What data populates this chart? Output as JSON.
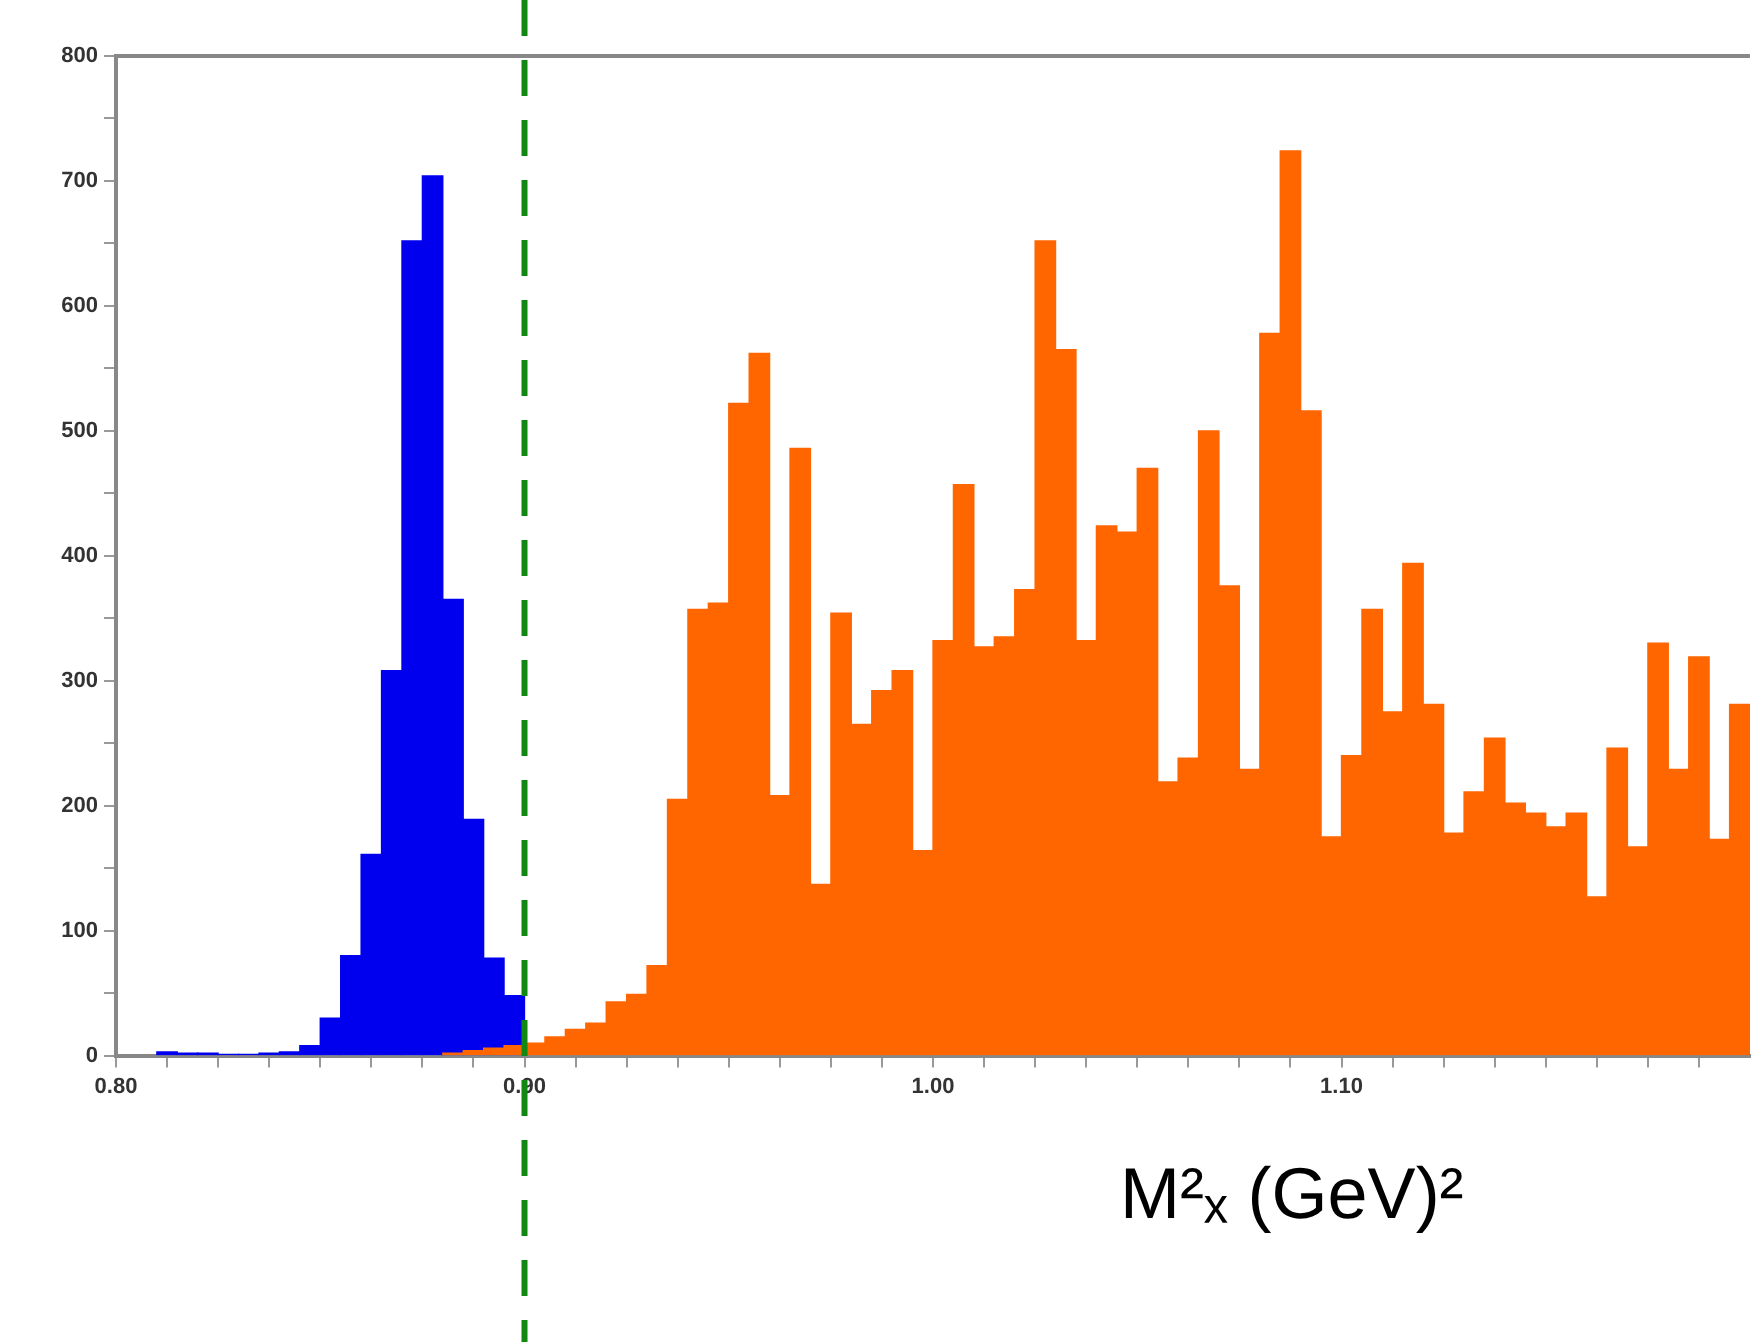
{
  "chart_data": {
    "type": "histogram",
    "xlabel": "M²ₓ (GeV)²",
    "bins": [
      0.81,
      0.815,
      0.82,
      0.825,
      0.83,
      0.835,
      0.84,
      0.845,
      0.85,
      0.855,
      0.86,
      0.865,
      0.87,
      0.875,
      0.88,
      0.885,
      0.89,
      0.895,
      0.9,
      0.905,
      0.91,
      0.915,
      0.92,
      0.925,
      0.93,
      0.935,
      0.94,
      0.945,
      0.95,
      0.955,
      0.96,
      0.965,
      0.97,
      0.975,
      0.98,
      0.985,
      0.99,
      0.995,
      1.0,
      1.005,
      1.01,
      1.015,
      1.02,
      1.025,
      1.03,
      1.035,
      1.04,
      1.045,
      1.05,
      1.055,
      1.06,
      1.065,
      1.07,
      1.075,
      1.08,
      1.085,
      1.09,
      1.095,
      1.1,
      1.105,
      1.11,
      1.115,
      1.12,
      1.125,
      1.13,
      1.135,
      1.14,
      1.145,
      1.15,
      1.155,
      1.16,
      1.165,
      1.17,
      1.175,
      1.18,
      1.185,
      1.19,
      1.195,
      1.2
    ],
    "series": [
      {
        "color": "#0000ee",
        "values": [
          3,
          2,
          2,
          1,
          1,
          2,
          3,
          8,
          30,
          80,
          161,
          308,
          652,
          704,
          365,
          189,
          78,
          48,
          null,
          null,
          null,
          null,
          null,
          null,
          null,
          null,
          null,
          null,
          null,
          null,
          null,
          null,
          null,
          null,
          null,
          null,
          null,
          null,
          null,
          null,
          null,
          null,
          null,
          null,
          null,
          null,
          null,
          null,
          null,
          null,
          null,
          null,
          null,
          null,
          null,
          null,
          null,
          null,
          null,
          null,
          null,
          null,
          null,
          null,
          null,
          null,
          null,
          null,
          null,
          null,
          null,
          null,
          null,
          null,
          null,
          null,
          null,
          null
        ]
      },
      {
        "color": "#ff6600",
        "values": [
          null,
          null,
          null,
          null,
          null,
          null,
          null,
          null,
          null,
          null,
          null,
          null,
          null,
          null,
          2,
          4,
          6,
          8,
          10,
          15,
          21,
          26,
          43,
          49,
          72,
          205,
          357,
          362,
          522,
          562,
          208,
          486,
          137,
          354,
          265,
          292,
          308,
          164,
          332,
          457,
          327,
          335,
          373,
          652,
          565,
          332,
          424,
          419,
          470,
          219,
          238,
          500,
          376,
          229,
          578,
          724,
          516,
          175,
          240,
          357,
          275,
          394,
          281,
          178,
          211,
          254,
          202,
          194,
          183,
          194,
          127,
          246,
          167,
          330,
          229,
          319,
          173,
          281
        ]
      }
    ],
    "xlim": [
      0.8,
      1.2
    ],
    "xticks": [
      {
        "value": 0.8,
        "label": "0.80"
      },
      {
        "value": 0.8125,
        "label": null
      },
      {
        "value": 0.825,
        "label": null
      },
      {
        "value": 0.8375,
        "label": null
      },
      {
        "value": 0.85,
        "label": null
      },
      {
        "value": 0.8625,
        "label": null
      },
      {
        "value": 0.875,
        "label": null
      },
      {
        "value": 0.8875,
        "label": null
      },
      {
        "value": 0.9,
        "label": "0.90"
      },
      {
        "value": 0.9125,
        "label": null
      },
      {
        "value": 0.925,
        "label": null
      },
      {
        "value": 0.9375,
        "label": null
      },
      {
        "value": 0.95,
        "label": null
      },
      {
        "value": 0.9625,
        "label": null
      },
      {
        "value": 0.975,
        "label": null
      },
      {
        "value": 0.9875,
        "label": null
      },
      {
        "value": 1.0,
        "label": "1.00"
      },
      {
        "value": 1.0125,
        "label": null
      },
      {
        "value": 1.025,
        "label": null
      },
      {
        "value": 1.0375,
        "label": null
      },
      {
        "value": 1.05,
        "label": null
      },
      {
        "value": 1.0625,
        "label": null
      },
      {
        "value": 1.075,
        "label": null
      },
      {
        "value": 1.0875,
        "label": null
      },
      {
        "value": 1.1,
        "label": "1.10"
      },
      {
        "value": 1.1125,
        "label": null
      },
      {
        "value": 1.125,
        "label": null
      },
      {
        "value": 1.1375,
        "label": null
      },
      {
        "value": 1.15,
        "label": null
      },
      {
        "value": 1.1625,
        "label": null
      },
      {
        "value": 1.175,
        "label": null
      },
      {
        "value": 1.1875,
        "label": null
      }
    ],
    "ylim": [
      0,
      800
    ],
    "yticks": [
      0,
      {
        "value": 50,
        "label": null
      },
      100,
      {
        "value": 150,
        "label": null
      },
      200,
      {
        "value": 250,
        "label": null
      },
      300,
      {
        "value": 350,
        "label": null
      },
      400,
      {
        "value": 450,
        "label": null
      },
      500,
      {
        "value": 550,
        "label": null
      },
      600,
      {
        "value": 650,
        "label": null
      },
      700,
      {
        "value": 750,
        "label": null
      },
      800
    ],
    "ref_lines": [
      {
        "axis": "x",
        "value": 0.9,
        "color": "#118811",
        "line_style": "dashed"
      }
    ],
    "grid": false,
    "legend": false
  }
}
